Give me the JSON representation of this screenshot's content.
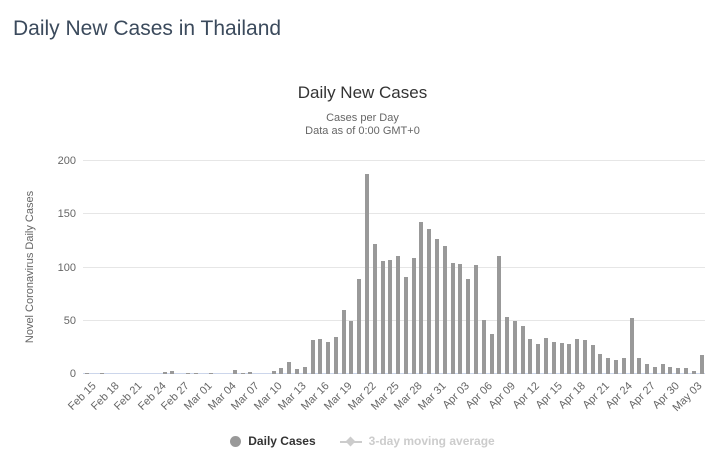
{
  "page": {
    "title": "Daily New Cases in Thailand"
  },
  "chart": {
    "title": "Daily New Cases",
    "subtitle_line1": "Cases per Day",
    "subtitle_line2": "Data as of 0:00 GMT+0",
    "y_axis_title": "Novel Coronavirus Daily Cases",
    "legend": {
      "daily_cases_label": "Daily Cases",
      "moving_average_label": "3-day moving average"
    }
  },
  "colors": {
    "page_title": "#3b4a5c",
    "chart_title": "#333333",
    "subtitle": "#666666",
    "axis_label": "#666666",
    "gridline": "#e6e6e6",
    "axis_line": "#ccd6eb",
    "bar": "#999999",
    "legend_active": "#333333",
    "legend_disabled": "#cccccc"
  },
  "chart_data": {
    "type": "bar",
    "title": "Daily New Cases",
    "subtitle": [
      "Cases per Day",
      "Data as of 0:00 GMT+0"
    ],
    "xlabel": "",
    "ylabel": "Novel Coronavirus Daily Cases",
    "ylim": [
      0,
      200
    ],
    "yticks": [
      0,
      50,
      100,
      150,
      200
    ],
    "grid": true,
    "legend_position": "bottom",
    "x_label_every": 3,
    "categories": [
      "Feb 15",
      "Feb 16",
      "Feb 17",
      "Feb 18",
      "Feb 19",
      "Feb 20",
      "Feb 21",
      "Feb 22",
      "Feb 23",
      "Feb 24",
      "Feb 25",
      "Feb 26",
      "Feb 27",
      "Feb 28",
      "Feb 29",
      "Mar 01",
      "Mar 02",
      "Mar 03",
      "Mar 04",
      "Mar 05",
      "Mar 06",
      "Mar 07",
      "Mar 08",
      "Mar 09",
      "Mar 10",
      "Mar 11",
      "Mar 12",
      "Mar 13",
      "Mar 14",
      "Mar 15",
      "Mar 16",
      "Mar 17",
      "Mar 18",
      "Mar 19",
      "Mar 20",
      "Mar 21",
      "Mar 22",
      "Mar 23",
      "Mar 24",
      "Mar 25",
      "Mar 26",
      "Mar 27",
      "Mar 28",
      "Mar 29",
      "Mar 30",
      "Mar 31",
      "Apr 01",
      "Apr 02",
      "Apr 03",
      "Apr 04",
      "Apr 05",
      "Apr 06",
      "Apr 07",
      "Apr 08",
      "Apr 09",
      "Apr 10",
      "Apr 11",
      "Apr 12",
      "Apr 13",
      "Apr 14",
      "Apr 15",
      "Apr 16",
      "Apr 17",
      "Apr 18",
      "Apr 19",
      "Apr 20",
      "Apr 21",
      "Apr 22",
      "Apr 23",
      "Apr 24",
      "Apr 25",
      "Apr 26",
      "Apr 27",
      "Apr 28",
      "Apr 29",
      "Apr 30",
      "May 01",
      "May 02",
      "May 03",
      "May 04"
    ],
    "series": [
      {
        "name": "Daily Cases",
        "type": "column",
        "color": "#999999",
        "visible": true,
        "values": [
          1,
          0,
          1,
          0,
          0,
          0,
          0,
          0,
          0,
          0,
          2,
          3,
          0,
          1,
          1,
          0,
          1,
          0,
          0,
          4,
          1,
          2,
          0,
          0,
          3,
          6,
          11,
          5,
          7,
          32,
          33,
          30,
          35,
          60,
          50,
          89,
          188,
          122,
          106,
          107,
          111,
          91,
          109,
          143,
          136,
          127,
          120,
          104,
          103,
          89,
          102,
          51,
          38,
          111,
          54,
          50,
          45,
          33,
          28,
          34,
          30,
          29,
          28,
          33,
          32,
          27,
          19,
          15,
          13,
          15,
          53,
          15,
          9,
          7,
          9,
          7,
          6,
          6,
          3,
          18
        ]
      },
      {
        "name": "3-day moving average",
        "type": "line",
        "color": "#cccccc",
        "visible": false,
        "values": []
      }
    ]
  }
}
